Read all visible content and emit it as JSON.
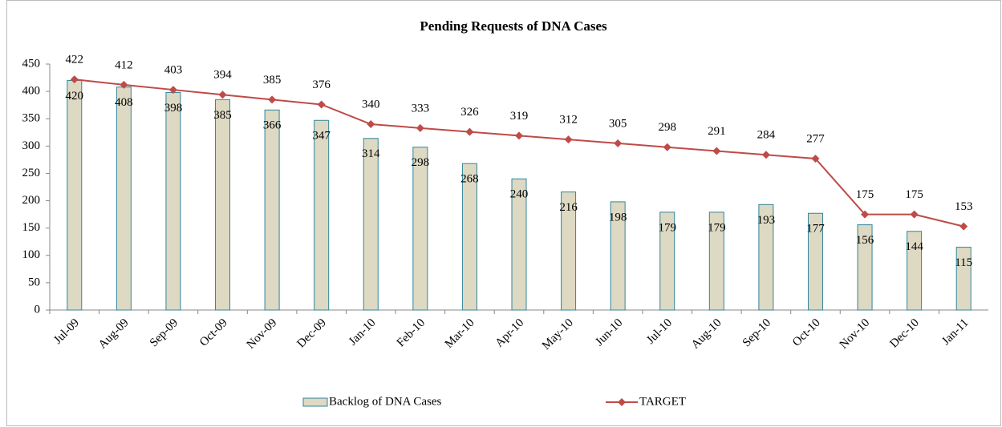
{
  "chart_data": {
    "type": "bar",
    "title": "Pending Requests of DNA Cases",
    "categories": [
      "Jul-09",
      "Aug-09",
      "Sep-09",
      "Oct-09",
      "Nov-09",
      "Dec-09",
      "Jan-10",
      "Feb-10",
      "Mar-10",
      "Apr-10",
      "May-10",
      "Jun-10",
      "Jul-10",
      "Aug-10",
      "Sep-10",
      "Oct-10",
      "Nov-10",
      "Dec-10",
      "Jan-11"
    ],
    "series": [
      {
        "name": "Backlog of DNA Cases",
        "type": "bar",
        "color": "#ddd9c3",
        "values": [
          420,
          408,
          398,
          385,
          366,
          347,
          314,
          298,
          268,
          240,
          216,
          198,
          179,
          179,
          193,
          177,
          156,
          144,
          115
        ]
      },
      {
        "name": "TARGET",
        "type": "line",
        "color": "#be4b48",
        "values": [
          422,
          412,
          403,
          394,
          385,
          376,
          340,
          333,
          326,
          319,
          312,
          305,
          298,
          291,
          284,
          277,
          175,
          175,
          153
        ]
      }
    ],
    "ylim": [
      0,
      450
    ],
    "yticks": [
      0,
      50,
      100,
      150,
      200,
      250,
      300,
      350,
      400,
      450
    ],
    "legend": "bottom"
  }
}
